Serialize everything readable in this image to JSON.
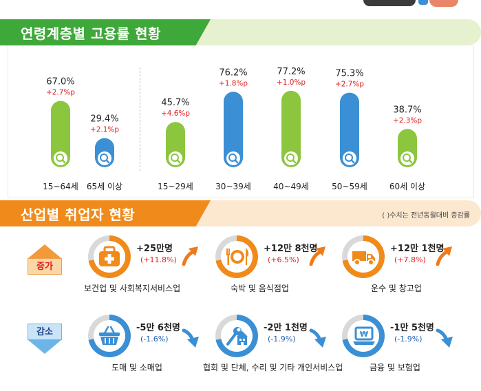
{
  "section1": {
    "title": "연령계층별 고용률 현황"
  },
  "chart_data": {
    "type": "bar",
    "title": "연령계층별 고용률 현황",
    "categories": [
      "15~64세",
      "65세 이상",
      "15~29세",
      "30~39세",
      "40~49세",
      "50~59세",
      "60세 이상"
    ],
    "values": [
      67.0,
      29.4,
      45.7,
      76.2,
      77.2,
      75.3,
      38.7
    ],
    "value_labels": [
      "67.0%",
      "29.4%",
      "45.7%",
      "76.2%",
      "77.2%",
      "75.3%",
      "38.7%"
    ],
    "changes": [
      "+2.7%p",
      "+2.1%p",
      "+4.6%p",
      "+1.8%p",
      "+1.0%p",
      "+2.7%p",
      "+2.3%p"
    ],
    "bar_colors": [
      "#8cc63f",
      "#3b8fd4",
      "#8cc63f",
      "#3b8fd4",
      "#8cc63f",
      "#3b8fd4",
      "#8cc63f"
    ],
    "change_color": "#e02020",
    "groups": [
      [
        "15~64세",
        "65세 이상"
      ],
      [
        "15~29세",
        "30~39세",
        "40~49세",
        "50~59세",
        "60세 이상"
      ]
    ]
  },
  "section2": {
    "title": "산업별 취업자 현황",
    "note": "( )수치는 전년동월대비 증감률",
    "increase_label": "증가",
    "decrease_label": "감소",
    "increase": [
      {
        "name": "보건업 및 사회복지서비스업",
        "value": "+25만명",
        "change": "(+11.8%)",
        "icon": "first-aid-kit-icon"
      },
      {
        "name": "숙박 및 음식점업",
        "value": "+12만 8천명",
        "change": "(+6.5%)",
        "icon": "dining-plate-icon"
      },
      {
        "name": "운수 및 창고업",
        "value": "+12만 1천명",
        "change": "(+7.8%)",
        "icon": "delivery-truck-icon"
      }
    ],
    "decrease": [
      {
        "name": "도매 및 소매업",
        "value": "-5만 6천명",
        "change": "(-1.6%)",
        "icon": "shopping-basket-icon"
      },
      {
        "name": "협회 및 단체, 수리 및 기타 개인서비스업",
        "value": "-2만 1천명",
        "change": "(-1.9%)",
        "icon": "wrench-building-icon"
      },
      {
        "name": "금융 및 보험업",
        "value": "-1만 5천명",
        "change": "(-1.9%)",
        "icon": "won-laptop-icon"
      }
    ],
    "colors": {
      "increase_ring": "#f08a1a",
      "decrease_ring": "#3b8fd4",
      "ring_track": "#d9d9d9",
      "increase_text": "#e02020",
      "decrease_text": "#1f5fb0"
    }
  }
}
